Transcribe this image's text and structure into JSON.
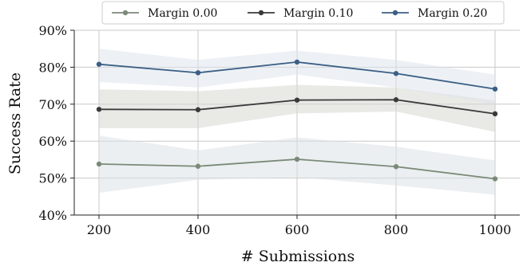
{
  "chart_data": {
    "type": "line",
    "title": "",
    "xlabel": "# Submissions",
    "ylabel": "Success Rate",
    "x": [
      200,
      400,
      600,
      800,
      1000
    ],
    "xlim": [
      150,
      1050
    ],
    "ylim": [
      40,
      90
    ],
    "xticks": [
      "200",
      "400",
      "600",
      "800",
      "1000"
    ],
    "yticks": [
      {
        "value": 40,
        "label": "40%"
      },
      {
        "value": 50,
        "label": "50%"
      },
      {
        "value": 60,
        "label": "60%"
      },
      {
        "value": 70,
        "label": "70%"
      },
      {
        "value": 80,
        "label": "80%"
      },
      {
        "value": 90,
        "label": "90%"
      }
    ],
    "grid": true,
    "legend_position": "top",
    "series": [
      {
        "name": "Margin 0.00",
        "color": "#7a8a78",
        "band_color": "#dde1e6",
        "values": [
          53.8,
          53.2,
          55.1,
          53.1,
          49.8
        ],
        "lower": [
          46.0,
          49.5,
          50.2,
          48.0,
          45.5
        ],
        "upper": [
          61.5,
          57.5,
          61.0,
          58.5,
          54.8
        ]
      },
      {
        "name": "Margin 0.10",
        "color": "#3a3a3a",
        "band_color": "#d7d7d2",
        "values": [
          68.6,
          68.5,
          71.1,
          71.2,
          67.4
        ],
        "lower": [
          63.5,
          63.5,
          67.5,
          68.0,
          62.5
        ],
        "upper": [
          74.0,
          73.5,
          75.2,
          74.5,
          71.0
        ]
      },
      {
        "name": "Margin 0.20",
        "color": "#3b5f85",
        "band_color": "#dfe5ec",
        "values": [
          80.8,
          78.5,
          81.4,
          78.3,
          74.1
        ],
        "lower": [
          76.0,
          74.5,
          78.0,
          74.5,
          70.0
        ],
        "upper": [
          85.0,
          82.0,
          84.5,
          82.0,
          78.0
        ]
      }
    ]
  }
}
